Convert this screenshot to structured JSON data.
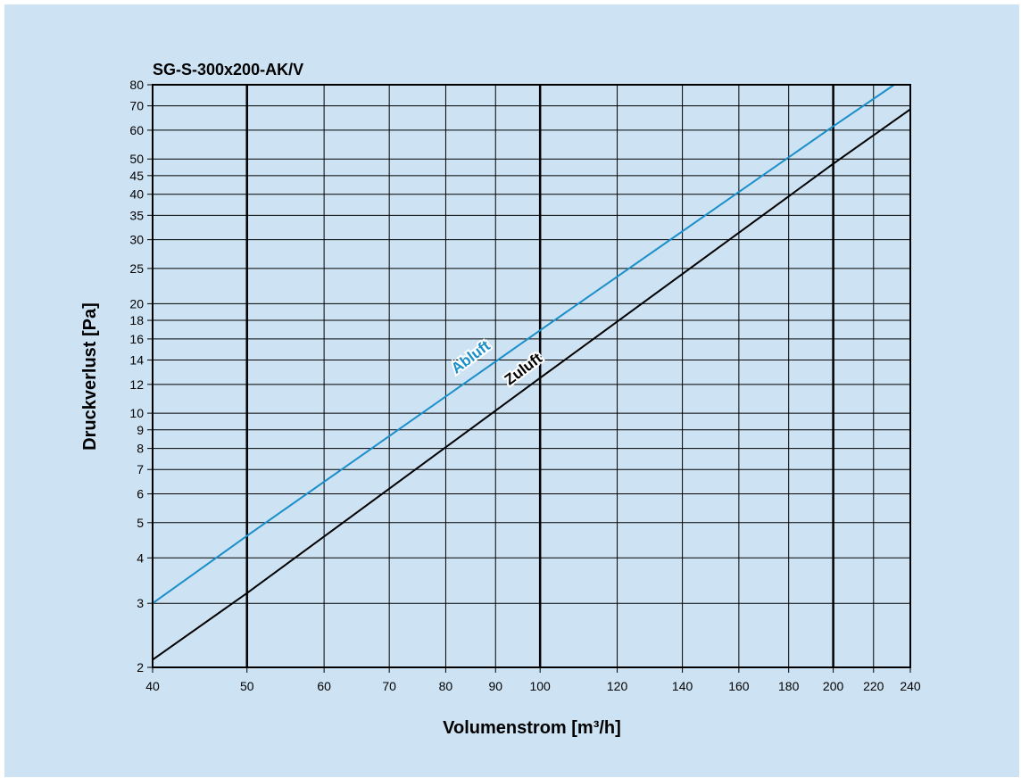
{
  "chart_data": {
    "type": "line",
    "title": "SG-S-300x200-AK/V",
    "xlabel": "Volumenstrom [m³/h]",
    "ylabel": "Druckverlust [Pa]",
    "xscale": "log",
    "yscale": "log",
    "xlim": [
      40,
      240
    ],
    "ylim": [
      2,
      80
    ],
    "grid": true,
    "x_ticks": [
      40,
      50,
      60,
      70,
      80,
      90,
      100,
      120,
      140,
      160,
      180,
      200,
      220,
      240
    ],
    "x_major_lines": [
      50,
      100,
      200
    ],
    "y_ticks": [
      2,
      3,
      4,
      5,
      6,
      7,
      8,
      9,
      10,
      12,
      14,
      16,
      18,
      20,
      25,
      30,
      35,
      40,
      45,
      50,
      60,
      70,
      80
    ],
    "series": [
      {
        "name": "Abluft",
        "color": "#1a8fc9",
        "x": [
          40,
          50,
          100,
          200,
          231
        ],
        "y": [
          3.0,
          4.6,
          16.9,
          61.5,
          80
        ]
      },
      {
        "name": "Zuluft",
        "color": "#000000",
        "x": [
          40,
          50,
          100,
          200,
          240
        ],
        "y": [
          2.1,
          3.2,
          12.5,
          48.5,
          68.5
        ]
      }
    ]
  }
}
